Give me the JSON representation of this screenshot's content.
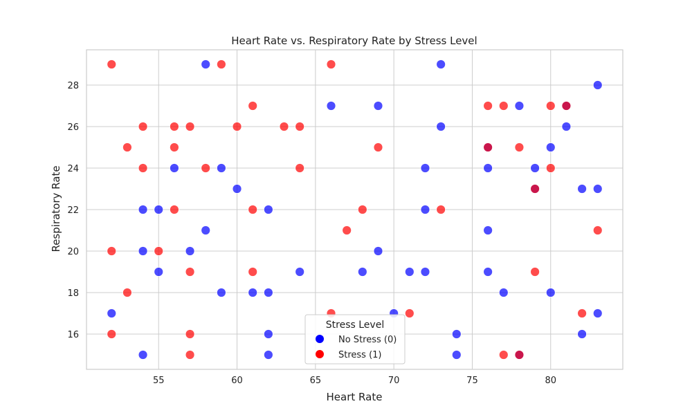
{
  "chart_data": {
    "type": "scatter",
    "title": "Heart Rate vs. Respiratory Rate by Stress Level",
    "xlabel": "Heart Rate",
    "ylabel": "Respiratory Rate",
    "xlim": [
      50.4,
      84.6
    ],
    "ylim": [
      14.3,
      29.7
    ],
    "xticks": [
      55,
      60,
      65,
      70,
      75,
      80
    ],
    "yticks": [
      16,
      18,
      20,
      22,
      24,
      26,
      28
    ],
    "grid": true,
    "legend": {
      "title": "Stress Level",
      "placement": "lower-center",
      "entries": [
        {
          "label": "No Stress (0)",
          "color": "#0000ff"
        },
        {
          "label": "Stress (1)",
          "color": "#ff0000"
        }
      ]
    },
    "series": [
      {
        "name": "No Stress (0)",
        "color": "#0000ff",
        "points": [
          [
            58,
            29
          ],
          [
            73,
            29
          ],
          [
            83,
            28
          ],
          [
            66,
            27
          ],
          [
            69,
            27
          ],
          [
            78,
            27
          ],
          [
            81,
            27
          ],
          [
            73,
            26
          ],
          [
            81,
            26
          ],
          [
            76,
            25
          ],
          [
            80,
            25
          ],
          [
            56,
            24
          ],
          [
            59,
            24
          ],
          [
            72,
            24
          ],
          [
            76,
            24
          ],
          [
            79,
            24
          ],
          [
            60,
            23
          ],
          [
            79,
            23
          ],
          [
            82,
            23
          ],
          [
            83,
            23
          ],
          [
            54,
            22
          ],
          [
            55,
            22
          ],
          [
            62,
            22
          ],
          [
            72,
            22
          ],
          [
            58,
            21
          ],
          [
            76,
            21
          ],
          [
            54,
            20
          ],
          [
            57,
            20
          ],
          [
            69,
            20
          ],
          [
            55,
            19
          ],
          [
            64,
            19
          ],
          [
            68,
            19
          ],
          [
            71,
            19
          ],
          [
            72,
            19
          ],
          [
            76,
            19
          ],
          [
            59,
            18
          ],
          [
            61,
            18
          ],
          [
            62,
            18
          ],
          [
            77,
            18
          ],
          [
            80,
            18
          ],
          [
            52,
            17
          ],
          [
            70,
            17
          ],
          [
            83,
            17
          ],
          [
            62,
            16
          ],
          [
            74,
            16
          ],
          [
            82,
            16
          ],
          [
            54,
            15
          ],
          [
            62,
            15
          ],
          [
            74,
            15
          ],
          [
            78,
            15
          ]
        ]
      },
      {
        "name": "Stress (1)",
        "color": "#ff0000",
        "points": [
          [
            52,
            29
          ],
          [
            59,
            29
          ],
          [
            66,
            29
          ],
          [
            61,
            27
          ],
          [
            76,
            27
          ],
          [
            77,
            27
          ],
          [
            80,
            27
          ],
          [
            81,
            27
          ],
          [
            54,
            26
          ],
          [
            56,
            26
          ],
          [
            57,
            26
          ],
          [
            60,
            26
          ],
          [
            63,
            26
          ],
          [
            64,
            26
          ],
          [
            53,
            25
          ],
          [
            56,
            25
          ],
          [
            69,
            25
          ],
          [
            76,
            25
          ],
          [
            78,
            25
          ],
          [
            54,
            24
          ],
          [
            58,
            24
          ],
          [
            64,
            24
          ],
          [
            80,
            24
          ],
          [
            79,
            23
          ],
          [
            56,
            22
          ],
          [
            61,
            22
          ],
          [
            68,
            22
          ],
          [
            73,
            22
          ],
          [
            67,
            21
          ],
          [
            83,
            21
          ],
          [
            52,
            20
          ],
          [
            55,
            20
          ],
          [
            57,
            19
          ],
          [
            61,
            19
          ],
          [
            79,
            19
          ],
          [
            53,
            18
          ],
          [
            66,
            17
          ],
          [
            71,
            17
          ],
          [
            82,
            17
          ],
          [
            52,
            16
          ],
          [
            57,
            16
          ],
          [
            57,
            15
          ],
          [
            77,
            15
          ],
          [
            78,
            15
          ]
        ]
      }
    ]
  }
}
